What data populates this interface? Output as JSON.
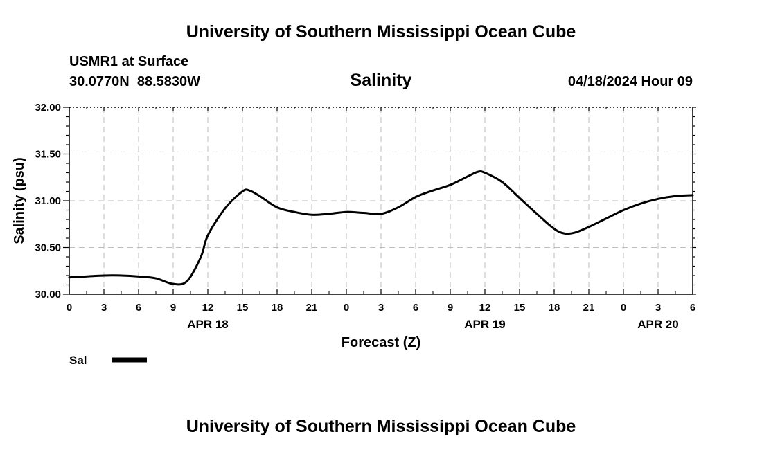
{
  "header": {
    "title": "University of Southern Mississippi Ocean Cube",
    "station": "USMR1 at Surface",
    "location": "30.0770N  88.5830W",
    "chart_title": "Salinity",
    "timestamp": "04/18/2024 Hour 09"
  },
  "legend": {
    "label": "Sal",
    "color": "#000000"
  },
  "footer": {
    "title": "University of Southern Mississippi Ocean Cube"
  },
  "chart_data": {
    "type": "line",
    "title": "Salinity",
    "xlabel": "Forecast (Z)",
    "ylabel": "Salinity (psu)",
    "ylim": [
      30.0,
      32.0
    ],
    "y_ticks": [
      "30.00",
      "30.50",
      "31.00",
      "31.50",
      "32.00"
    ],
    "x_tick_labels": [
      "0",
      "3",
      "6",
      "9",
      "12",
      "15",
      "18",
      "21",
      "0",
      "3",
      "6",
      "9",
      "12",
      "15",
      "18",
      "21",
      "0",
      "3",
      "6"
    ],
    "date_labels": [
      {
        "label": "APR 18",
        "at_tick": 4
      },
      {
        "label": "APR 19",
        "at_tick": 12
      },
      {
        "label": "APR 20",
        "at_tick": 17
      }
    ],
    "grid": true,
    "legend_position": "bottom-left",
    "series": [
      {
        "name": "Sal",
        "x_ticks": [
          0,
          1,
          1.5,
          2,
          2.5,
          3,
          3.4,
          3.8,
          4,
          4.5,
          5,
          5.2,
          5.5,
          6,
          6.5,
          7,
          7.5,
          8,
          8.5,
          9,
          9.5,
          10,
          10.5,
          11,
          11.5,
          11.8,
          12,
          12.5,
          13,
          13.5,
          14,
          14.3,
          14.6,
          15,
          15.5,
          16,
          16.5,
          17,
          17.5,
          18
        ],
        "values": [
          30.18,
          30.2,
          30.2,
          30.19,
          30.17,
          30.11,
          30.14,
          30.4,
          30.63,
          30.92,
          31.1,
          31.11,
          31.05,
          30.93,
          30.88,
          30.85,
          30.86,
          30.88,
          30.87,
          30.86,
          30.93,
          31.04,
          31.11,
          31.17,
          31.26,
          31.31,
          31.3,
          31.2,
          31.03,
          30.86,
          30.7,
          30.65,
          30.66,
          30.72,
          30.81,
          30.9,
          30.97,
          31.02,
          31.05,
          31.06
        ]
      }
    ]
  }
}
